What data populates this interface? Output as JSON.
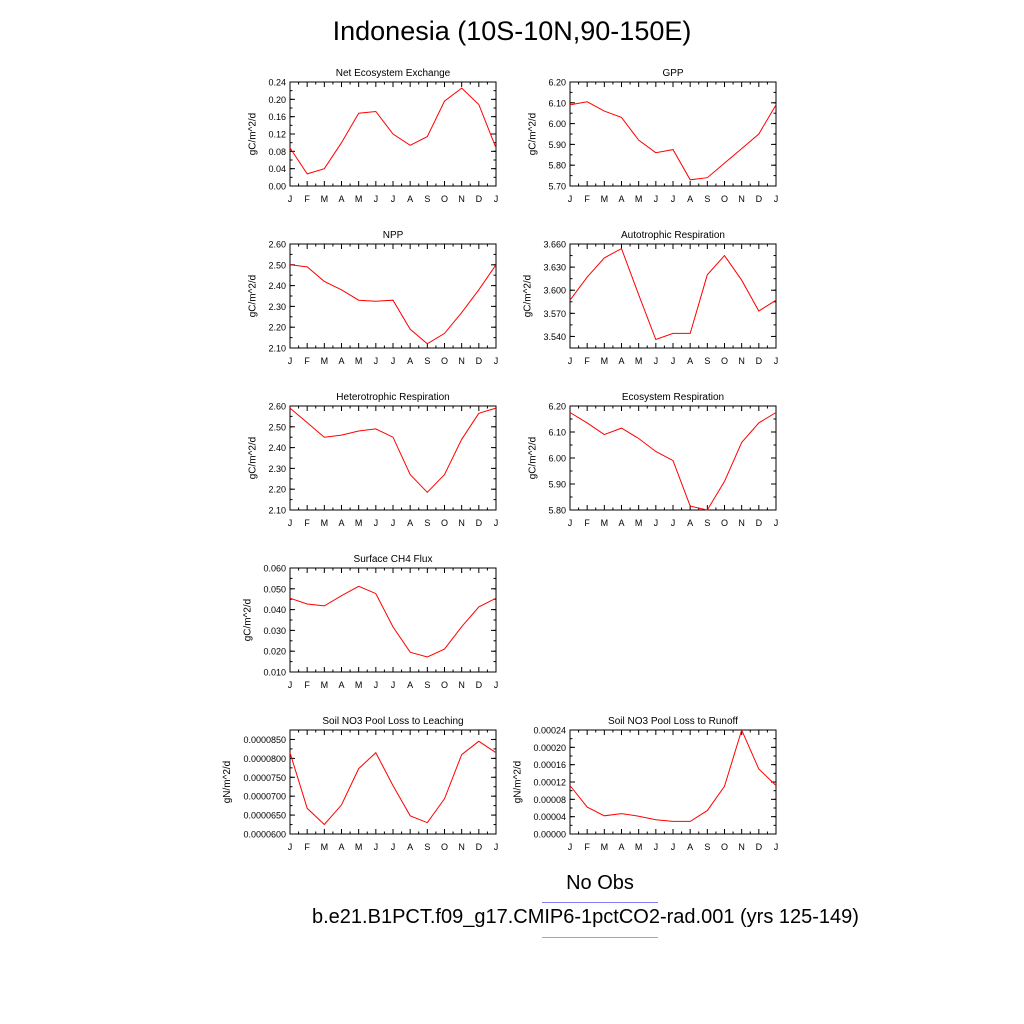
{
  "figure": {
    "title": "Indonesia (10S-10N,90-150E)",
    "legend": {
      "obs_label": "No Obs",
      "case_label": "b.e21.B1PCT.f09_g17.CMIP6-1pctCO2-rad.001 (yrs 125-149)",
      "obs_color": "#8080ff",
      "case_color": "#ff8080"
    },
    "line_color": "#ff0000"
  },
  "chart_data": [
    {
      "type": "line",
      "title": "Net Ecosystem Exchange",
      "ylabel": "gC/m^2/d",
      "xlabel": "",
      "categories": [
        "J",
        "F",
        "M",
        "A",
        "M",
        "J",
        "J",
        "A",
        "S",
        "O",
        "N",
        "D",
        "J"
      ],
      "ylim": [
        0.0,
        0.24
      ],
      "yticks": [
        0.0,
        0.04,
        0.08,
        0.12,
        0.16,
        0.2,
        0.24
      ],
      "ytick_labels": [
        "0.00",
        "0.04",
        "0.08",
        "0.12",
        "0.16",
        "0.20",
        "0.24"
      ],
      "values": [
        0.088,
        0.028,
        0.04,
        0.1,
        0.168,
        0.172,
        0.12,
        0.094,
        0.114,
        0.196,
        0.226,
        0.188,
        0.088
      ]
    },
    {
      "type": "line",
      "title": "GPP",
      "ylabel": "gC/m^2/d",
      "xlabel": "",
      "categories": [
        "J",
        "F",
        "M",
        "A",
        "M",
        "J",
        "J",
        "A",
        "S",
        "O",
        "N",
        "D",
        "J"
      ],
      "ylim": [
        5.7,
        6.2
      ],
      "yticks": [
        5.7,
        5.8,
        5.9,
        6.0,
        6.1,
        6.2
      ],
      "ytick_labels": [
        "5.70",
        "5.80",
        "5.90",
        "6.00",
        "6.10",
        "6.20"
      ],
      "values": [
        6.09,
        6.105,
        6.06,
        6.03,
        5.92,
        5.86,
        5.875,
        5.73,
        5.74,
        5.81,
        5.88,
        5.95,
        6.09
      ]
    },
    {
      "type": "line",
      "title": "NPP",
      "ylabel": "gC/m^2/d",
      "xlabel": "",
      "categories": [
        "J",
        "F",
        "M",
        "A",
        "M",
        "J",
        "J",
        "A",
        "S",
        "O",
        "N",
        "D",
        "J"
      ],
      "ylim": [
        2.1,
        2.6
      ],
      "yticks": [
        2.1,
        2.2,
        2.3,
        2.4,
        2.5,
        2.6
      ],
      "ytick_labels": [
        "2.10",
        "2.20",
        "2.30",
        "2.40",
        "2.50",
        "2.60"
      ],
      "values": [
        2.5,
        2.49,
        2.42,
        2.38,
        2.33,
        2.325,
        2.33,
        2.19,
        2.12,
        2.17,
        2.27,
        2.38,
        2.5
      ]
    },
    {
      "type": "line",
      "title": "Autotrophic Respiration",
      "ylabel": "gC/m^2/d",
      "xlabel": "",
      "categories": [
        "J",
        "F",
        "M",
        "A",
        "M",
        "J",
        "J",
        "A",
        "S",
        "O",
        "N",
        "D",
        "J"
      ],
      "ylim": [
        3.525,
        3.66
      ],
      "yticks": [
        3.54,
        3.57,
        3.6,
        3.63,
        3.66
      ],
      "ytick_labels": [
        "3.540",
        "3.570",
        "3.600",
        "3.630",
        "3.660"
      ],
      "values": [
        3.587,
        3.617,
        3.642,
        3.654,
        3.594,
        3.536,
        3.544,
        3.544,
        3.62,
        3.645,
        3.613,
        3.573,
        3.587
      ]
    },
    {
      "type": "line",
      "title": "Heterotrophic Respiration",
      "ylabel": "gC/m^2/d",
      "xlabel": "",
      "categories": [
        "J",
        "F",
        "M",
        "A",
        "M",
        "J",
        "J",
        "A",
        "S",
        "O",
        "N",
        "D",
        "J"
      ],
      "ylim": [
        2.1,
        2.6
      ],
      "yticks": [
        2.1,
        2.2,
        2.3,
        2.4,
        2.5,
        2.6
      ],
      "ytick_labels": [
        "2.10",
        "2.20",
        "2.30",
        "2.40",
        "2.50",
        "2.60"
      ],
      "values": [
        2.59,
        2.52,
        2.45,
        2.46,
        2.48,
        2.49,
        2.45,
        2.27,
        2.185,
        2.27,
        2.44,
        2.565,
        2.59
      ]
    },
    {
      "type": "line",
      "title": "Ecosystem Respiration",
      "ylabel": "gC/m^2/d",
      "xlabel": "",
      "categories": [
        "J",
        "F",
        "M",
        "A",
        "M",
        "J",
        "J",
        "A",
        "S",
        "O",
        "N",
        "D",
        "J"
      ],
      "ylim": [
        5.8,
        6.2
      ],
      "yticks": [
        5.8,
        5.9,
        6.0,
        6.1,
        6.2
      ],
      "ytick_labels": [
        "5.80",
        "5.90",
        "6.00",
        "6.10",
        "6.20"
      ],
      "values": [
        6.175,
        6.135,
        6.09,
        6.115,
        6.075,
        6.025,
        5.99,
        5.815,
        5.8,
        5.91,
        6.06,
        6.135,
        6.175
      ]
    },
    {
      "type": "line",
      "title": "Surface CH4 Flux",
      "ylabel": "gC/m^2/d",
      "xlabel": "",
      "categories": [
        "J",
        "F",
        "M",
        "A",
        "M",
        "J",
        "J",
        "A",
        "S",
        "O",
        "N",
        "D",
        "J"
      ],
      "ylim": [
        0.01,
        0.06
      ],
      "yticks": [
        0.01,
        0.02,
        0.03,
        0.04,
        0.05,
        0.06
      ],
      "ytick_labels": [
        "0.010",
        "0.020",
        "0.030",
        "0.040",
        "0.050",
        "0.060"
      ],
      "values": [
        0.0455,
        0.0427,
        0.0418,
        0.0467,
        0.0512,
        0.0477,
        0.0317,
        0.0195,
        0.0172,
        0.021,
        0.0318,
        0.0413,
        0.0455
      ]
    },
    {
      "type": "line",
      "title": "Soil NO3 Pool Loss to Leaching",
      "ylabel": "gN/m^2/d",
      "xlabel": "",
      "categories": [
        "J",
        "F",
        "M",
        "A",
        "M",
        "J",
        "J",
        "A",
        "S",
        "O",
        "N",
        "D",
        "J"
      ],
      "ylim": [
        6e-05,
        8.75e-05
      ],
      "yticks": [
        6e-05,
        6.5e-05,
        7e-05,
        7.5e-05,
        8e-05,
        8.5e-05
      ],
      "ytick_labels": [
        "0.0000600",
        "0.0000650",
        "0.0000700",
        "0.0000750",
        "0.0000800",
        "0.0000850"
      ],
      "values": [
        8.15e-05,
        6.68e-05,
        6.25e-05,
        6.77e-05,
        7.73e-05,
        8.15e-05,
        7.28e-05,
        6.48e-05,
        6.3e-05,
        6.93e-05,
        8.1e-05,
        8.45e-05,
        8.15e-05
      ]
    },
    {
      "type": "line",
      "title": "Soil NO3 Pool Loss to Runoff",
      "ylabel": "gN/m^2/d",
      "xlabel": "",
      "categories": [
        "J",
        "F",
        "M",
        "A",
        "M",
        "J",
        "J",
        "A",
        "S",
        "O",
        "N",
        "D",
        "J"
      ],
      "ylim": [
        0.0,
        0.00024
      ],
      "yticks": [
        0.0,
        4e-05,
        8e-05,
        0.00012,
        0.00016,
        0.0002,
        0.00024
      ],
      "ytick_labels": [
        "0.00000",
        "0.00004",
        "0.00008",
        "0.00012",
        "0.00016",
        "0.00020",
        "0.00024"
      ],
      "values": [
        0.000112,
        6.2e-05,
        4.2e-05,
        4.7e-05,
        4.1e-05,
        3.3e-05,
        2.9e-05,
        2.9e-05,
        5.4e-05,
        0.00011,
        0.00024,
        0.00015,
        0.000112
      ]
    }
  ]
}
